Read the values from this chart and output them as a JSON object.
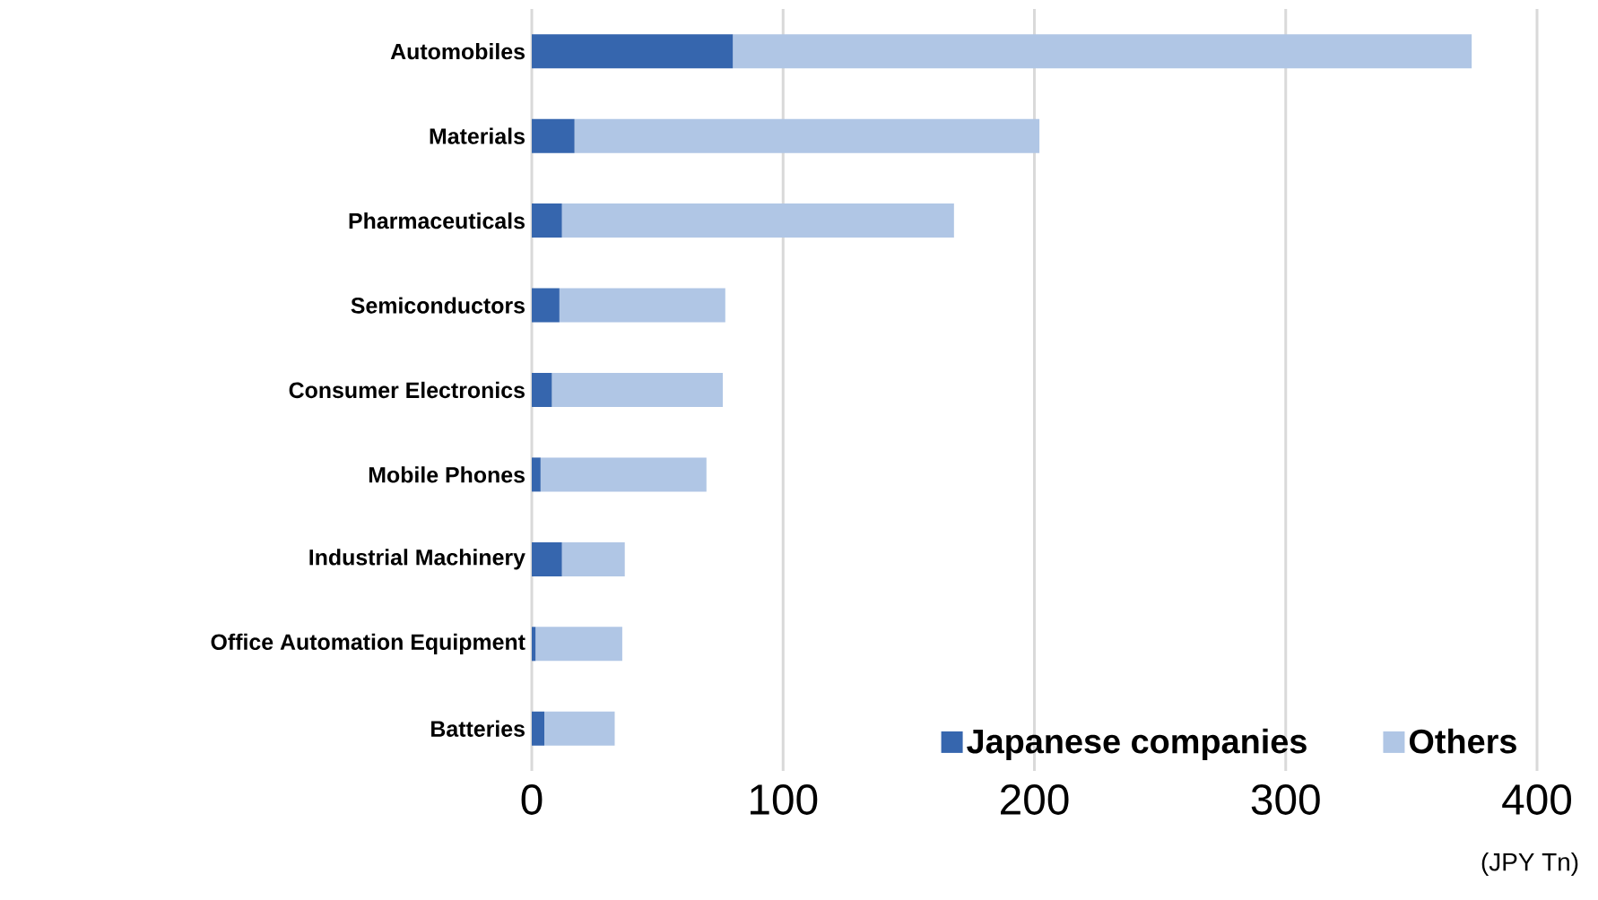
{
  "chart_data": {
    "type": "bar",
    "orientation": "horizontal",
    "stacked": true,
    "categories": [
      "Automobiles",
      "Materials",
      "Pharmaceuticals",
      "Semiconductors",
      "Consumer Electronics",
      "Mobile Phones",
      "Industrial Machinery",
      "Office Automation Equipment",
      "Batteries"
    ],
    "series": [
      {
        "name": "Japanese companies",
        "color": "#3666ae",
        "values": [
          80,
          17,
          12,
          11,
          8,
          3.5,
          12,
          1.5,
          5
        ]
      },
      {
        "name": "Others",
        "color": "#b0c6e5",
        "values": [
          294,
          185,
          156,
          66,
          68,
          66,
          25,
          34.5,
          28
        ]
      }
    ],
    "xlabel": "(JPY Tn)",
    "xlim": [
      0,
      400
    ],
    "xticks": [
      0,
      100,
      200,
      300,
      400
    ],
    "grid": "x",
    "legend": "bottom right"
  }
}
